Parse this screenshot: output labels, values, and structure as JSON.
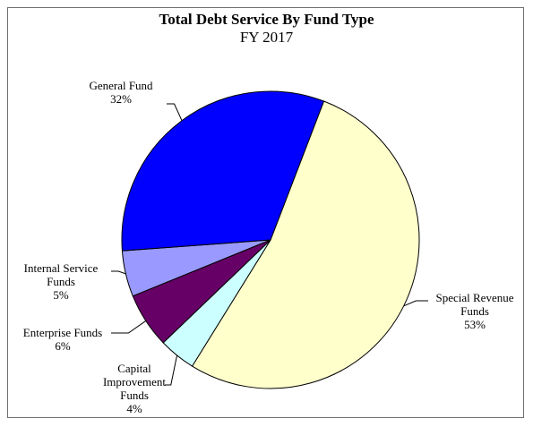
{
  "chart_data": {
    "type": "pie",
    "title": "Total Debt Service By Fund Type",
    "subtitle": "FY 2017",
    "slices": [
      {
        "name": "General Fund",
        "label_lines": [
          "General Fund"
        ],
        "pct_text": "32%",
        "value": 32,
        "color": "#0000FF"
      },
      {
        "name": "Special Revenue Funds",
        "label_lines": [
          "Special Revenue",
          "Funds"
        ],
        "pct_text": "53%",
        "value": 53,
        "color": "#FFFFCC"
      },
      {
        "name": "Capital Improvement Funds",
        "label_lines": [
          "Capital",
          "Improvement",
          "Funds"
        ],
        "pct_text": "4%",
        "value": 4,
        "color": "#CCFFFF"
      },
      {
        "name": "Enterprise Funds",
        "label_lines": [
          "Enterprise Funds"
        ],
        "pct_text": "6%",
        "value": 6,
        "color": "#660066"
      },
      {
        "name": "Internal Service Funds",
        "label_lines": [
          "Internal Service",
          "Funds"
        ],
        "pct_text": "5%",
        "value": 5,
        "color": "#9999FF"
      }
    ],
    "legend": "none",
    "labels": "outside-with-leader-lines"
  }
}
